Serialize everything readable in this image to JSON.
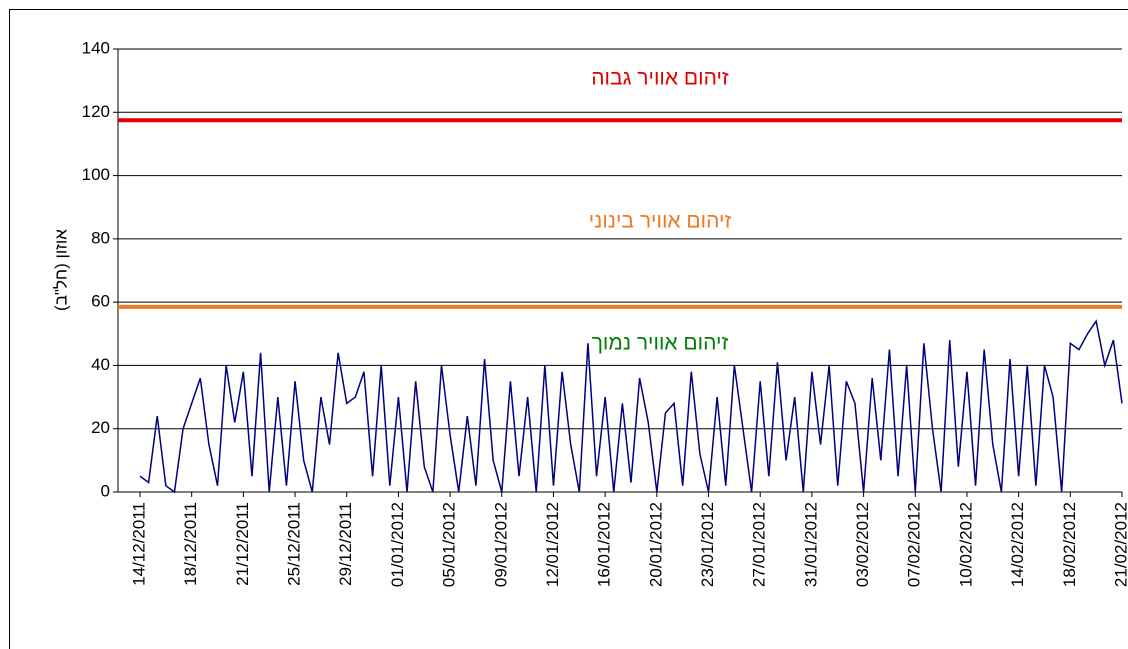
{
  "chart_data": {
    "type": "line",
    "y_label": "אוזון (חל\"ב)",
    "categories": [
      "14/12/2011",
      null,
      null,
      null,
      null,
      null,
      "18/12/2011",
      null,
      null,
      null,
      null,
      null,
      "21/12/2011",
      null,
      null,
      null,
      null,
      null,
      "25/12/2011",
      null,
      null,
      null,
      null,
      null,
      "29/12/2011",
      null,
      null,
      null,
      null,
      null,
      "01/01/2012",
      null,
      null,
      null,
      null,
      null,
      "05/01/2012",
      null,
      null,
      null,
      null,
      null,
      "09/01/2012",
      null,
      null,
      null,
      null,
      null,
      "12/01/2012",
      null,
      null,
      null,
      null,
      null,
      "16/01/2012",
      null,
      null,
      null,
      null,
      null,
      "20/01/2012",
      null,
      null,
      null,
      null,
      null,
      "23/01/2012",
      null,
      null,
      null,
      null,
      null,
      "27/01/2012",
      null,
      null,
      null,
      null,
      null,
      "31/01/2012",
      null,
      null,
      null,
      null,
      null,
      "03/02/2012",
      null,
      null,
      null,
      null,
      null,
      "07/02/2012",
      null,
      null,
      null,
      null,
      null,
      "10/02/2012",
      null,
      null,
      null,
      null,
      null,
      "14/02/2012",
      null,
      null,
      null,
      null,
      null,
      "18/02/2012",
      null,
      null,
      null,
      null,
      null,
      "21/02/2012"
    ],
    "series": [
      {
        "color": "#000080",
        "values": [
          5,
          3,
          24,
          2,
          0,
          20,
          28,
          36,
          15,
          2,
          40,
          22,
          38,
          5,
          44,
          0,
          30,
          2,
          35,
          10,
          0,
          30,
          15,
          44,
          28,
          30,
          38,
          5,
          40,
          2,
          30,
          0,
          35,
          8,
          0,
          40,
          18,
          0,
          24,
          2,
          42,
          10,
          0,
          35,
          5,
          30,
          0,
          40,
          2,
          38,
          15,
          0,
          47,
          5,
          30,
          0,
          28,
          3,
          36,
          22,
          0,
          25,
          28,
          2,
          38,
          12,
          0,
          30,
          2,
          40,
          20,
          0,
          35,
          5,
          41,
          10,
          30,
          0,
          38,
          15,
          40,
          2,
          35,
          28,
          0,
          36,
          10,
          45,
          5,
          40,
          0,
          47,
          20,
          0,
          48,
          8,
          38,
          2,
          45,
          15,
          0,
          42,
          5,
          40,
          2,
          40,
          30,
          0,
          47,
          45,
          50,
          54,
          40,
          48,
          28
        ]
      }
    ],
    "reference_lines": [
      {
        "value": 117.5,
        "color": "#e00000"
      },
      {
        "value": 58.5,
        "color": "#f07820"
      }
    ],
    "annotations": [
      {
        "text": "זיהום אוויר גבוה",
        "color": "#e00000"
      },
      {
        "text": "זיהום אוויר בינוני",
        "color": "#f07820"
      },
      {
        "text": "זיהום אוויר נמוך",
        "color": "#008000"
      }
    ],
    "ylim": [
      0,
      140
    ],
    "yticks": [
      0,
      20,
      40,
      60,
      80,
      100,
      120,
      140
    ],
    "grid": true
  }
}
